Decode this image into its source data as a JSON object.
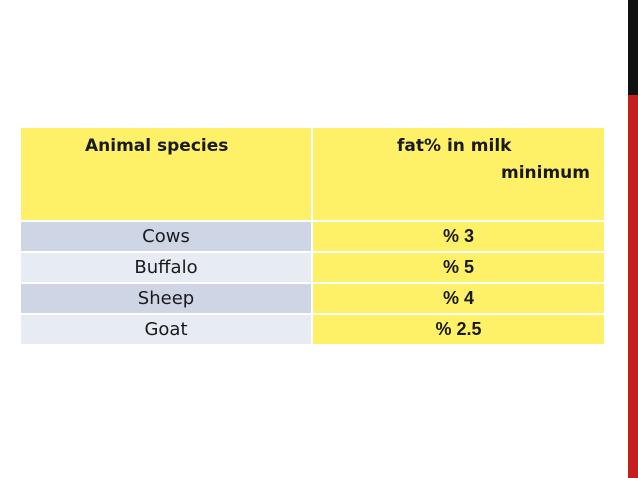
{
  "table": {
    "header": {
      "species": "Animal species",
      "fat_line1": "fat% in milk",
      "fat_line2": "minimum"
    },
    "rows": [
      {
        "species": "Cows",
        "fat": "% 3"
      },
      {
        "species": "Buffalo",
        "fat": "% 5"
      },
      {
        "species": "Sheep",
        "fat": "% 4"
      },
      {
        "species": "Goat",
        "fat": "% 2.5"
      }
    ]
  },
  "colors": {
    "header_bg": "#fef168",
    "fat_column_bg": "#fef168",
    "row_dark_bg": "#ced6e6",
    "row_light_bg": "#e7ebf3",
    "accent_dark": "#111111",
    "accent_red": "#c41e1e"
  }
}
